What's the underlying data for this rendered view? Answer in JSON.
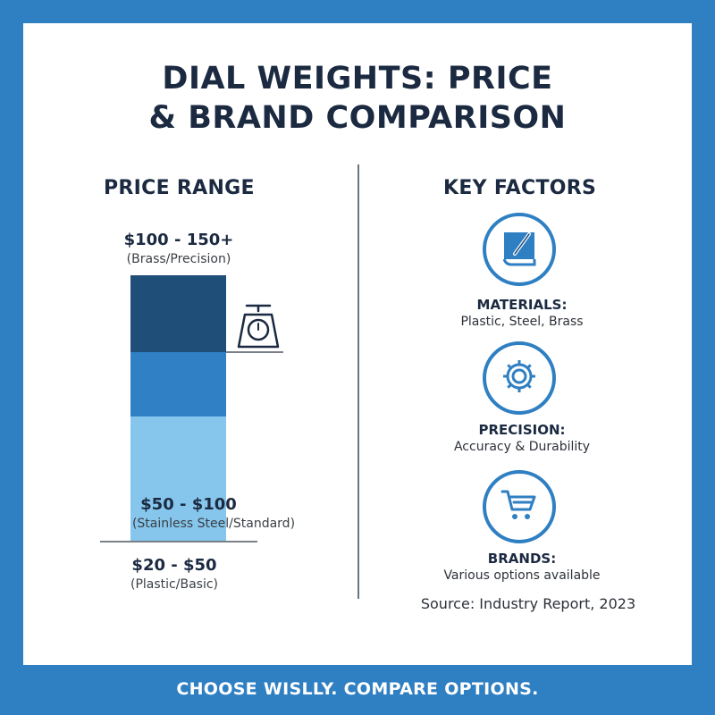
{
  "title": {
    "line1": "DIAL WEIGHTS: PRICE",
    "line2": "& BRAND COMPARISON"
  },
  "price_range": {
    "heading": "PRICE RANGE",
    "tiers": [
      {
        "price": "$100 - 150+",
        "note": "(Brass/Precision)",
        "color": "#1f4e79"
      },
      {
        "price": "$50 - $100",
        "note": "(Stainless Steel/Standard)",
        "color": "#2f80c4"
      },
      {
        "price": "$20 - $50",
        "note": "(Plastic/Basic)",
        "color": "#86c6ec"
      }
    ],
    "icon": "kitchen-scale-icon"
  },
  "key_factors": {
    "heading": "KEY FACTORS",
    "items": [
      {
        "icon": "book-pen-icon",
        "title": "MATERIALS:",
        "desc": "Plastic, Steel, Brass"
      },
      {
        "icon": "gear-icon",
        "title": "PRECISION:",
        "desc": "Accuracy & Durability"
      },
      {
        "icon": "shopping-cart-icon",
        "title": "BRANDS:",
        "desc": "Various options available"
      }
    ]
  },
  "source": "Source: Industry Report, 2023",
  "footer": "CHOOSE WISLLY. COMPARE OPTIONS.",
  "colors": {
    "frame": "#2f7fc3",
    "accent": "#2f7fc3",
    "text": "#1b2a41"
  }
}
